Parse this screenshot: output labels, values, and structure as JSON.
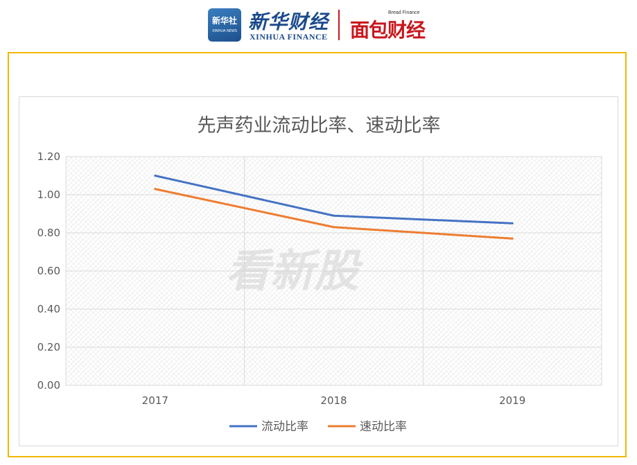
{
  "header": {
    "xinhua_badge": "新华社",
    "xinhua_badge_sub": "XINHUA NEWS",
    "xinhua_cn": "新华财经",
    "xinhua_en": "XINHUA FINANCE",
    "bread_en": "Bread Finance",
    "bread_cn": "面包财经"
  },
  "watermark": "看新股",
  "colors": {
    "frame": "#f2b705",
    "series1": "#4472c4",
    "series2": "#ed7d31",
    "grid": "#d9d9d9",
    "text": "#595959"
  },
  "chart_data": {
    "type": "line",
    "title": "先声药业流动比率、速动比率",
    "categories": [
      "2017",
      "2018",
      "2019"
    ],
    "series": [
      {
        "name": "流动比率",
        "values": [
          1.1,
          0.89,
          0.85
        ],
        "color": "#4472c4"
      },
      {
        "name": "速动比率",
        "values": [
          1.03,
          0.83,
          0.77
        ],
        "color": "#ed7d31"
      }
    ],
    "ylim": [
      0,
      1.2
    ],
    "yticks": [
      "0.00",
      "0.20",
      "0.40",
      "0.60",
      "0.80",
      "1.00",
      "1.20"
    ],
    "grid": true,
    "legend": "bottom"
  }
}
